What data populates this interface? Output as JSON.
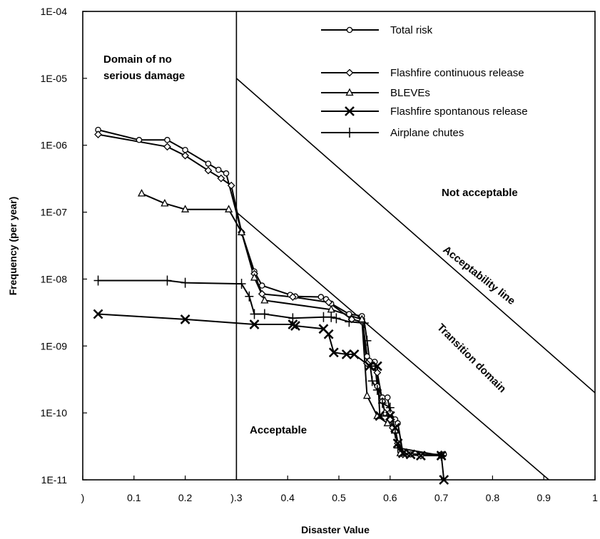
{
  "chart_data": {
    "type": "line",
    "xlabel": "Disaster Value",
    "ylabel": "Frequency (per year)",
    "xlim": [
      0,
      1
    ],
    "ylim": [
      1e-11,
      0.0001
    ],
    "y_scale": "log",
    "grid": false,
    "legend_position": "top-center",
    "x_ticks": [
      {
        "value": 0,
        "label": ")"
      },
      {
        "value": 0.1,
        "label": "0.1"
      },
      {
        "value": 0.2,
        "label": "0.2"
      },
      {
        "value": 0.3,
        "label": ").3"
      },
      {
        "value": 0.4,
        "label": "0.4"
      },
      {
        "value": 0.5,
        "label": "0.5"
      },
      {
        "value": 0.6,
        "label": "0.6"
      },
      {
        "value": 0.7,
        "label": "0.7"
      },
      {
        "value": 0.8,
        "label": "0.8"
      },
      {
        "value": 0.9,
        "label": "0.9"
      },
      {
        "value": 1,
        "label": "1"
      }
    ],
    "y_ticks": [
      {
        "value": 0.0001,
        "label": "1E-04"
      },
      {
        "value": 1e-05,
        "label": "1E-05"
      },
      {
        "value": 1e-06,
        "label": "1E-06"
      },
      {
        "value": 1e-07,
        "label": "1E-07"
      },
      {
        "value": 1e-08,
        "label": "1E-08"
      },
      {
        "value": 1e-09,
        "label": "1E-09"
      },
      {
        "value": 1e-10,
        "label": "1E-10"
      },
      {
        "value": 1e-11,
        "label": "1E-11"
      }
    ],
    "reference_lines": [
      {
        "name": "vertical-boundary",
        "points": [
          [
            0.3,
            0.0001
          ],
          [
            0.3,
            1e-11
          ]
        ]
      },
      {
        "name": "acceptability-line",
        "points": [
          [
            0.3,
            1e-05
          ],
          [
            1.0,
            2e-10
          ]
        ]
      },
      {
        "name": "transition-line",
        "points": [
          [
            0.3,
            1e-07
          ],
          [
            0.91,
            1e-11
          ]
        ]
      }
    ],
    "annotations": [
      {
        "id": "no-damage-1",
        "text": "Domain of no"
      },
      {
        "id": "no-damage-2",
        "text": "serious damage"
      },
      {
        "id": "not-acceptable",
        "text": "Not acceptable"
      },
      {
        "id": "acceptability-line-label",
        "text": "Acceptability line"
      },
      {
        "id": "transition-domain",
        "text": "Transition domain"
      },
      {
        "id": "acceptable",
        "text": "Acceptable"
      }
    ],
    "series": [
      {
        "name": "Total risk",
        "marker": "circle",
        "points": [
          [
            0.03,
            1.7e-06
          ],
          [
            0.11,
            1.2e-06
          ],
          [
            0.165,
            1.2e-06
          ],
          [
            0.2,
            8.5e-07
          ],
          [
            0.245,
            5.3e-07
          ],
          [
            0.265,
            4.3e-07
          ],
          [
            0.28,
            3.8e-07
          ],
          [
            0.31,
            5e-08
          ],
          [
            0.335,
            1.3e-08
          ],
          [
            0.35,
            8e-09
          ],
          [
            0.405,
            5.8e-09
          ],
          [
            0.415,
            5.5e-09
          ],
          [
            0.465,
            5.4e-09
          ],
          [
            0.475,
            5e-09
          ],
          [
            0.485,
            4.3e-09
          ],
          [
            0.52,
            3e-09
          ],
          [
            0.545,
            2.8e-09
          ],
          [
            0.555,
            7e-10
          ],
          [
            0.56,
            6e-10
          ],
          [
            0.57,
            5.8e-10
          ],
          [
            0.575,
            2.5e-10
          ],
          [
            0.585,
            1.7e-10
          ],
          [
            0.595,
            1.7e-10
          ],
          [
            0.6,
            1e-10
          ],
          [
            0.61,
            8e-11
          ],
          [
            0.615,
            7e-11
          ],
          [
            0.625,
            2.5e-11
          ],
          [
            0.64,
            2.4e-11
          ],
          [
            0.66,
            2.4e-11
          ],
          [
            0.7,
            2.4e-11
          ],
          [
            0.705,
            2.4e-11
          ]
        ]
      },
      {
        "name": "Flashfire continuous release",
        "marker": "diamond",
        "points": [
          [
            0.03,
            1.45e-06
          ],
          [
            0.165,
            9.5e-07
          ],
          [
            0.2,
            7e-07
          ],
          [
            0.245,
            4.2e-07
          ],
          [
            0.27,
            3.2e-07
          ],
          [
            0.29,
            2.5e-07
          ],
          [
            0.31,
            5e-08
          ],
          [
            0.335,
            1.2e-08
          ],
          [
            0.35,
            6e-09
          ],
          [
            0.41,
            5.4e-09
          ],
          [
            0.48,
            4.5e-09
          ],
          [
            0.525,
            2.5e-09
          ],
          [
            0.545,
            2.3e-09
          ],
          [
            0.555,
            5.5e-10
          ],
          [
            0.575,
            4e-10
          ],
          [
            0.585,
            1.5e-10
          ],
          [
            0.59,
            1e-10
          ],
          [
            0.6,
            8e-11
          ],
          [
            0.605,
            6e-11
          ],
          [
            0.615,
            3.5e-11
          ],
          [
            0.625,
            2.4e-11
          ],
          [
            0.66,
            2.3e-11
          ],
          [
            0.7,
            2.3e-11
          ]
        ]
      },
      {
        "name": "BLEVEs",
        "marker": "triangle",
        "points": [
          [
            0.115,
            1.9e-07
          ],
          [
            0.16,
            1.35e-07
          ],
          [
            0.2,
            1.1e-07
          ],
          [
            0.285,
            1.1e-07
          ],
          [
            0.31,
            5e-08
          ],
          [
            0.335,
            1.05e-08
          ],
          [
            0.355,
            4.8e-09
          ],
          [
            0.485,
            3.5e-09
          ],
          [
            0.545,
            2.5e-09
          ],
          [
            0.555,
            1.8e-10
          ],
          [
            0.575,
            9e-11
          ],
          [
            0.595,
            7e-11
          ],
          [
            0.61,
            5.5e-11
          ],
          [
            0.62,
            2.5e-11
          ],
          [
            0.7,
            2.3e-11
          ]
        ]
      },
      {
        "name": "Flashfire spontanous release",
        "marker": "x",
        "points": [
          [
            0.03,
            3e-09
          ],
          [
            0.2,
            2.5e-09
          ],
          [
            0.335,
            2.1e-09
          ],
          [
            0.41,
            2.1e-09
          ],
          [
            0.415,
            2e-09
          ],
          [
            0.47,
            1.8e-09
          ],
          [
            0.48,
            1.5e-09
          ],
          [
            0.49,
            8e-10
          ],
          [
            0.515,
            7.5e-10
          ],
          [
            0.53,
            7.5e-10
          ],
          [
            0.56,
            5e-10
          ],
          [
            0.575,
            5e-10
          ],
          [
            0.58,
            9e-11
          ],
          [
            0.6,
            9e-11
          ],
          [
            0.61,
            6e-11
          ],
          [
            0.615,
            3.5e-11
          ],
          [
            0.625,
            2.5e-11
          ],
          [
            0.64,
            2.4e-11
          ],
          [
            0.66,
            2.3e-11
          ],
          [
            0.7,
            2.3e-11
          ],
          [
            0.705,
            1e-11
          ]
        ]
      },
      {
        "name": "Airplane chutes",
        "marker": "plus",
        "points": [
          [
            0.03,
            9.5e-09
          ],
          [
            0.165,
            9.5e-09
          ],
          [
            0.2,
            8.8e-09
          ],
          [
            0.31,
            8.5e-09
          ],
          [
            0.325,
            5.5e-09
          ],
          [
            0.335,
            3e-09
          ],
          [
            0.355,
            3e-09
          ],
          [
            0.41,
            2.6e-09
          ],
          [
            0.47,
            2.7e-09
          ],
          [
            0.485,
            2.7e-09
          ],
          [
            0.495,
            2.6e-09
          ],
          [
            0.52,
            2.3e-09
          ],
          [
            0.55,
            2.2e-09
          ],
          [
            0.555,
            1.2e-09
          ],
          [
            0.565,
            3e-10
          ],
          [
            0.575,
            2.2e-10
          ],
          [
            0.585,
            1.4e-10
          ],
          [
            0.6,
            1.2e-10
          ],
          [
            0.61,
            5e-11
          ],
          [
            0.615,
            3e-11
          ],
          [
            0.7,
            2.3e-11
          ]
        ]
      }
    ]
  }
}
